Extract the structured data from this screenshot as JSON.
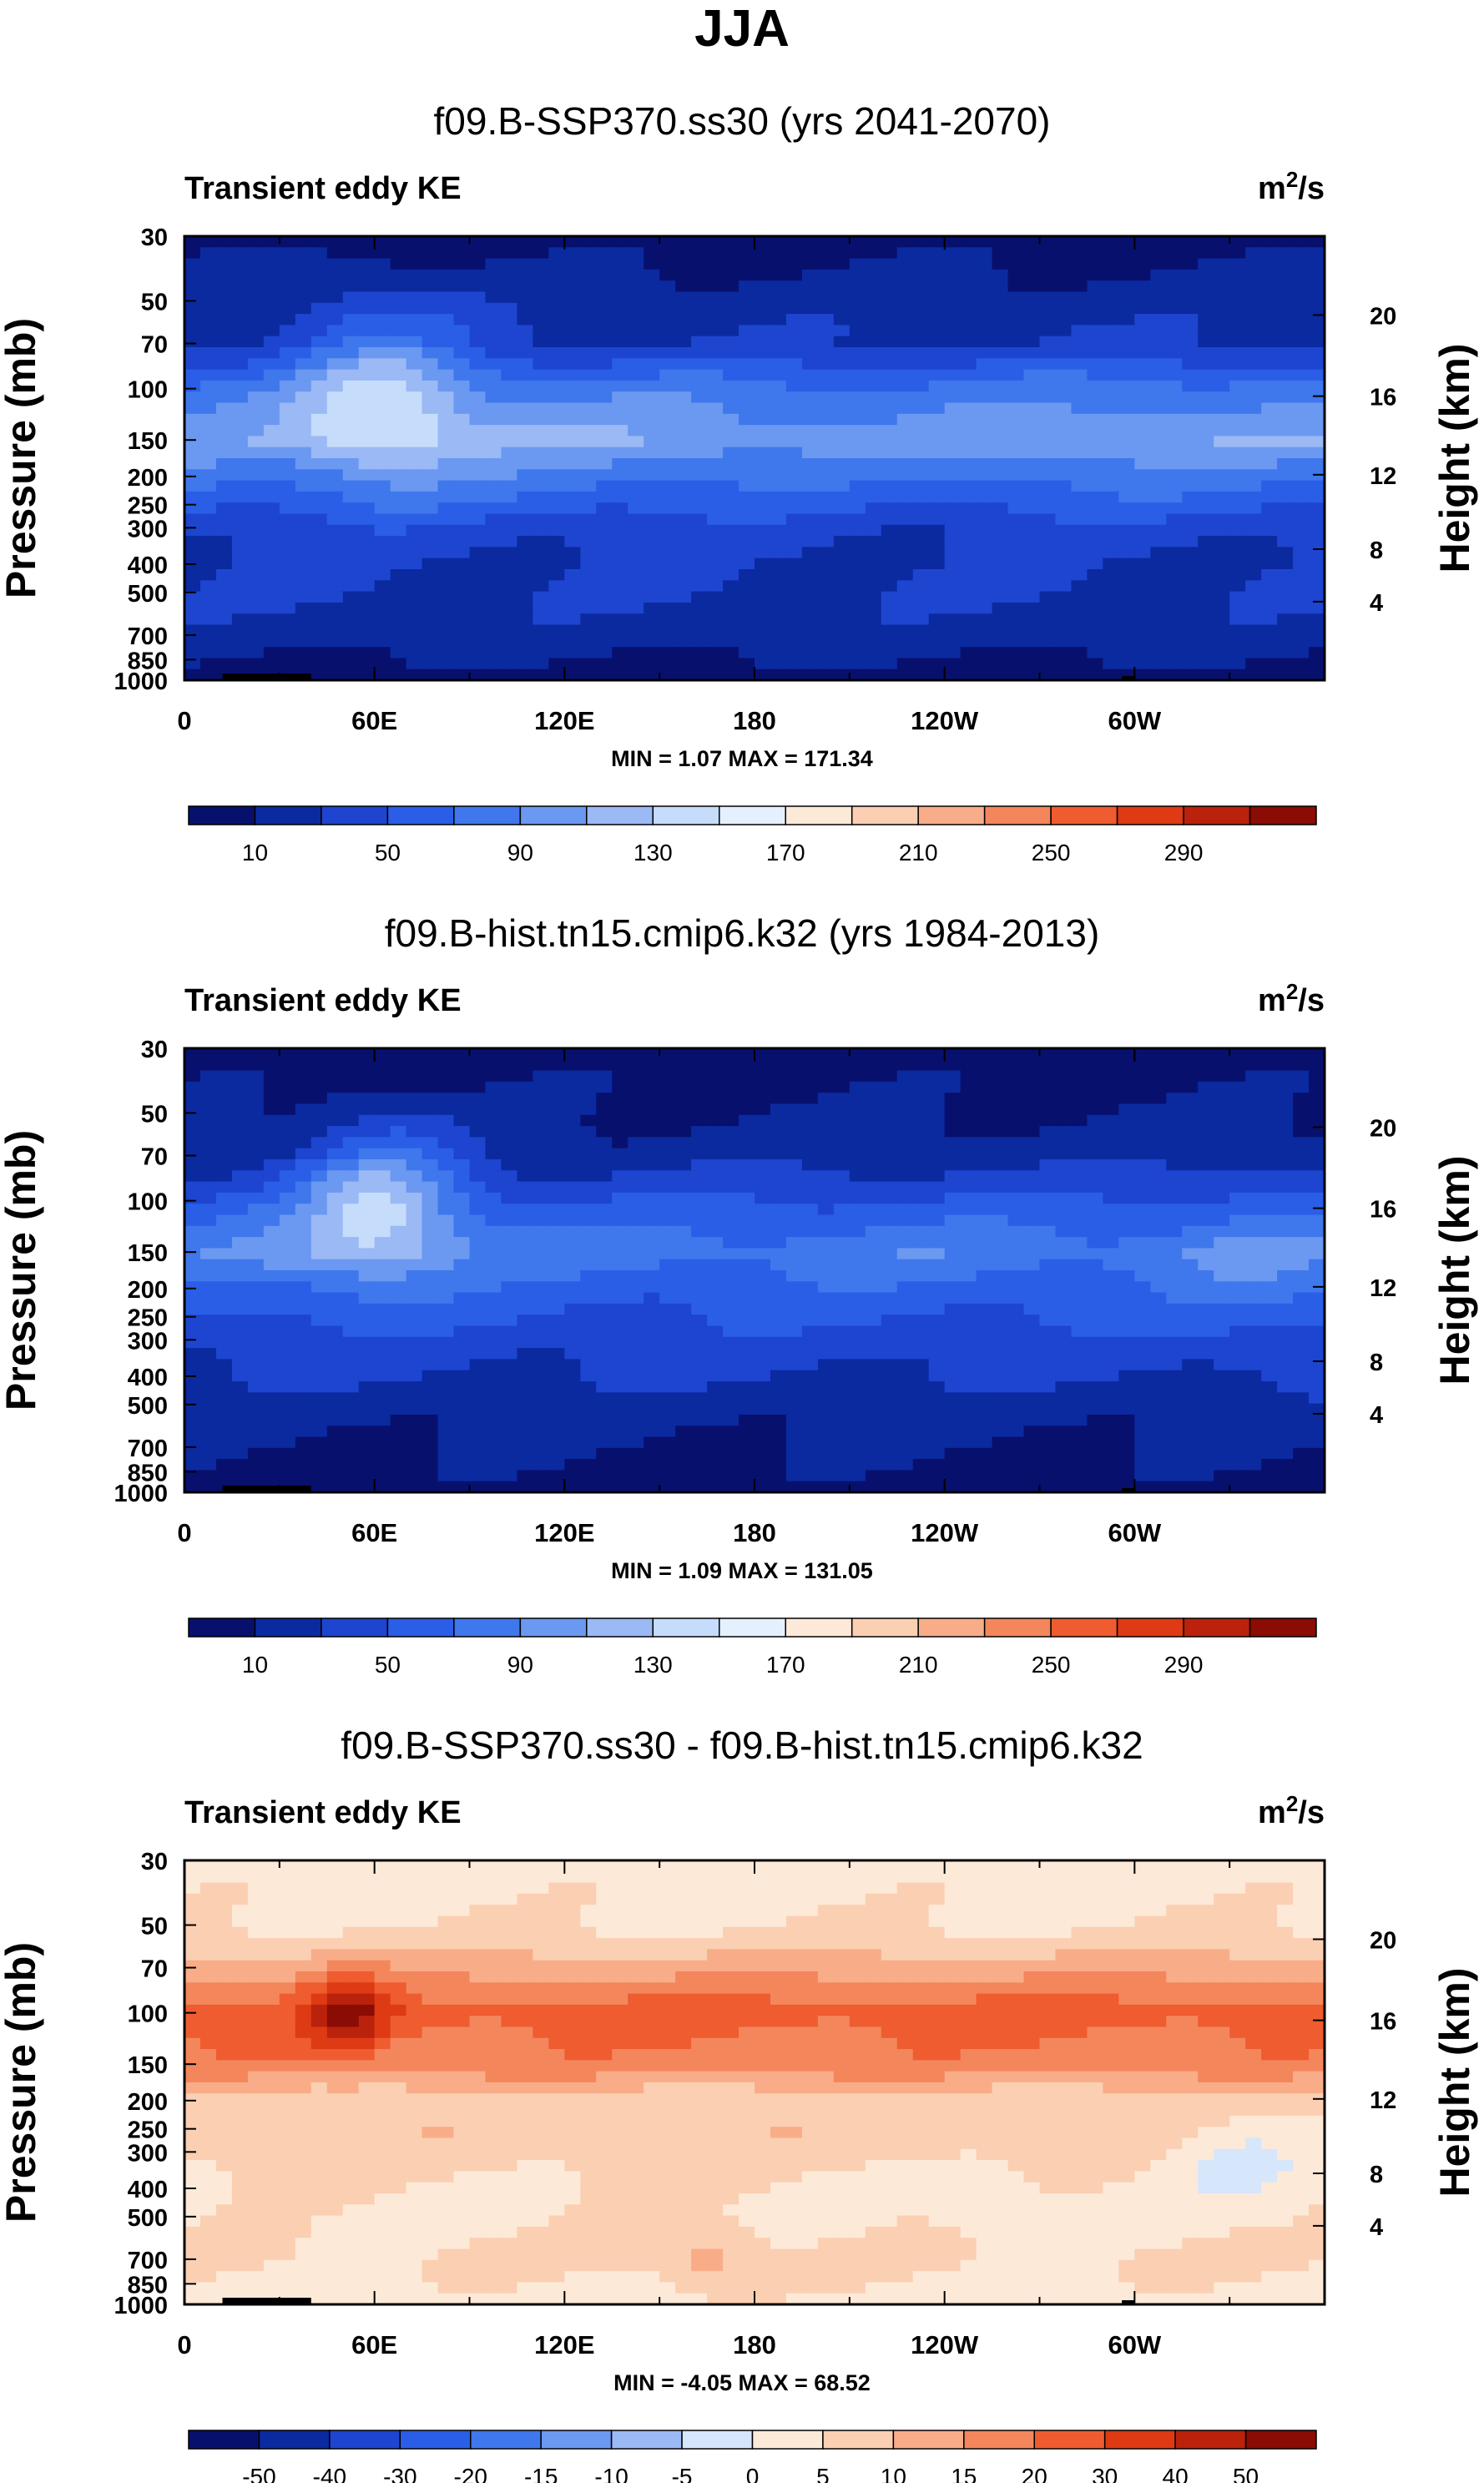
{
  "page_title": "JJA",
  "colors": {
    "full_palette": [
      "#08106e",
      "#0b2aa0",
      "#1d45d0",
      "#2a5ee6",
      "#3f77ec",
      "#6b98f0",
      "#9ab9f5",
      "#c6dcfb",
      "#e4f0fd",
      "#fde9d8",
      "#fbcfb2",
      "#f8ad88",
      "#f4865c",
      "#ee5c30",
      "#de3a14",
      "#bb220c",
      "#8a0c04"
    ],
    "diff_palette": [
      "#08106e",
      "#0b2aa0",
      "#1d45d0",
      "#2a5ee6",
      "#3f77ec",
      "#6b98f0",
      "#9ab9f5",
      "#d6e6fb",
      "#fde9d8",
      "#fbcfb2",
      "#f8ad88",
      "#f4865c",
      "#ee5c30",
      "#de3a14",
      "#bb220c",
      "#8a0c04"
    ],
    "terrain": "#000000"
  },
  "chart_data": [
    {
      "type": "heatmap",
      "title": "f09.B-SSP370.ss30 (yrs 2041-2070)",
      "field_label": "Transient eddy KE",
      "units_base": "m",
      "units_power": "2",
      "units_slash": "/s",
      "ylabel": "Pressure (mb)",
      "ylabel_right": "Height (km)",
      "x_ticks": [
        "0",
        "60E",
        "120E",
        "180",
        "120W",
        "60W"
      ],
      "y_ticks": [
        "30",
        "50",
        "70",
        "100",
        "150",
        "200",
        "250",
        "300",
        "400",
        "500",
        "700",
        "850",
        "1000"
      ],
      "y_right_ticks": [
        "20",
        "16",
        "12",
        "8",
        "4"
      ],
      "stats": "MIN =   1.07  MAX = 171.34",
      "colorbar_labels": [
        "10",
        "50",
        "90",
        "130",
        "170",
        "210",
        "250",
        "290"
      ],
      "colorbar_levels": [
        10,
        30,
        50,
        70,
        90,
        110,
        130,
        150,
        170,
        190,
        210,
        230,
        250,
        270,
        290
      ],
      "y_profile": [
        [
          30,
          0
        ],
        [
          50,
          1
        ],
        [
          70,
          1.5
        ],
        [
          100,
          4
        ],
        [
          150,
          5.5
        ],
        [
          200,
          4
        ],
        [
          250,
          3
        ],
        [
          300,
          2
        ],
        [
          400,
          1.5
        ],
        [
          500,
          1.5
        ],
        [
          700,
          1
        ],
        [
          850,
          0.5
        ],
        [
          1000,
          0
        ]
      ],
      "features": [
        {
          "lon": 62,
          "p": 100,
          "level": 7,
          "rx": 28,
          "rp": 0.7
        },
        {
          "lon": 22,
          "p": 150,
          "level": 5,
          "rx": 25,
          "rp": 0.5
        },
        {
          "lon": 220,
          "p": 160,
          "level": 4.5,
          "rx": 40,
          "rp": 0.6
        },
        {
          "lon": 340,
          "p": 175,
          "level": 4.5,
          "rx": 30,
          "rp": 0.6
        }
      ]
    },
    {
      "type": "heatmap",
      "title": "f09.B-hist.tn15.cmip6.k32 (yrs 1984-2013)",
      "field_label": "Transient eddy KE",
      "units_base": "m",
      "units_power": "2",
      "units_slash": "/s",
      "ylabel": "Pressure (mb)",
      "ylabel_right": "Height (km)",
      "x_ticks": [
        "0",
        "60E",
        "120E",
        "180",
        "120W",
        "60W"
      ],
      "y_ticks": [
        "30",
        "50",
        "70",
        "100",
        "150",
        "200",
        "250",
        "300",
        "400",
        "500",
        "700",
        "850",
        "1000"
      ],
      "y_right_ticks": [
        "20",
        "16",
        "12",
        "8",
        "4"
      ],
      "stats": "MIN =   1.09  MAX = 131.05",
      "colorbar_labels": [
        "10",
        "50",
        "90",
        "130",
        "170",
        "210",
        "250",
        "290"
      ],
      "colorbar_levels": [
        10,
        30,
        50,
        70,
        90,
        110,
        130,
        150,
        170,
        190,
        210,
        230,
        250,
        270,
        290
      ],
      "y_profile": [
        [
          30,
          0
        ],
        [
          50,
          0.5
        ],
        [
          70,
          1
        ],
        [
          100,
          2.5
        ],
        [
          150,
          4
        ],
        [
          200,
          3
        ],
        [
          250,
          2.5
        ],
        [
          300,
          2
        ],
        [
          400,
          1.5
        ],
        [
          500,
          1
        ],
        [
          700,
          0.5
        ],
        [
          850,
          0.3
        ],
        [
          1000,
          0
        ]
      ],
      "features": [
        {
          "lon": 62,
          "p": 100,
          "level": 6.5,
          "rx": 25,
          "rp": 0.6
        },
        {
          "lon": 30,
          "p": 150,
          "level": 4.5,
          "rx": 25,
          "rp": 0.5
        },
        {
          "lon": 340,
          "p": 175,
          "level": 4.5,
          "rx": 30,
          "rp": 0.6
        },
        {
          "lon": 230,
          "p": 170,
          "level": 3.8,
          "rx": 50,
          "rp": 0.6
        }
      ]
    },
    {
      "type": "heatmap",
      "title": "f09.B-SSP370.ss30 - f09.B-hist.tn15.cmip6.k32",
      "field_label": "Transient eddy KE",
      "units_base": "m",
      "units_power": "2",
      "units_slash": "/s",
      "ylabel": "Pressure (mb)",
      "ylabel_right": "Height (km)",
      "x_ticks": [
        "0",
        "60E",
        "120E",
        "180",
        "120W",
        "60W"
      ],
      "y_ticks": [
        "30",
        "50",
        "70",
        "100",
        "150",
        "200",
        "250",
        "300",
        "400",
        "500",
        "700",
        "850",
        "1000"
      ],
      "y_right_ticks": [
        "20",
        "16",
        "12",
        "8",
        "4"
      ],
      "stats": "MIN = -4.05  MAX = 68.52",
      "colorbar_labels": [
        "-50",
        "-40",
        "-30",
        "-20",
        "-15",
        "-10",
        "-5",
        "0",
        "5",
        "10",
        "15",
        "20",
        "30",
        "40",
        "50"
      ],
      "colorbar_levels": [
        -50,
        -40,
        -30,
        -20,
        -15,
        -10,
        -5,
        0,
        5,
        10,
        15,
        20,
        30,
        40,
        50
      ],
      "y_profile": [
        [
          30,
          8
        ],
        [
          50,
          8.4
        ],
        [
          70,
          10
        ],
        [
          100,
          12
        ],
        [
          150,
          11
        ],
        [
          200,
          9
        ],
        [
          250,
          9.2
        ],
        [
          300,
          9
        ],
        [
          400,
          8.5
        ],
        [
          500,
          8.3
        ],
        [
          700,
          8.6
        ],
        [
          850,
          8.3
        ],
        [
          1000,
          8
        ]
      ],
      "features": [
        {
          "lon": 52,
          "p": 100,
          "level": 15,
          "rx": 12,
          "rp": 0.35
        },
        {
          "lon": 165,
          "p": 700,
          "level": 10,
          "rx": 18,
          "rp": 0.3
        },
        {
          "lon": 255,
          "p": 420,
          "level": 7.4,
          "rx": 15,
          "rp": 0.3
        },
        {
          "lon": 335,
          "p": 320,
          "level": 7.4,
          "rx": 25,
          "rp": 0.35
        }
      ]
    }
  ]
}
